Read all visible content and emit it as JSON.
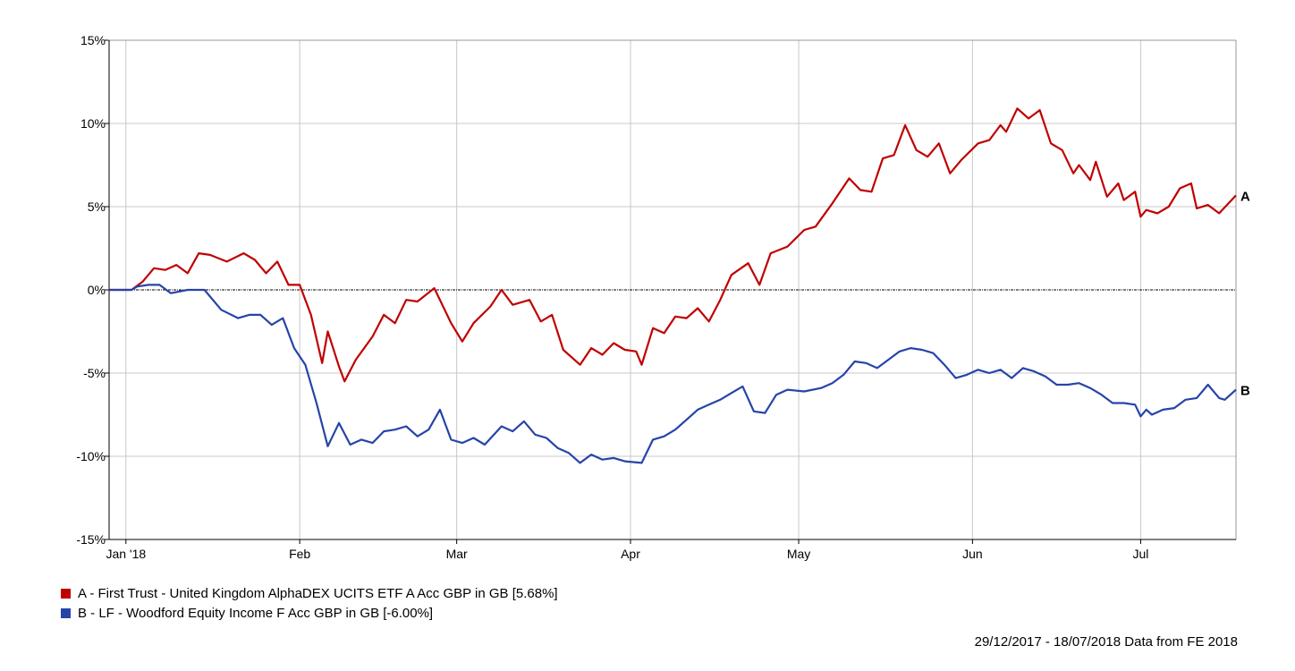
{
  "chart_data": {
    "type": "line",
    "x_range": [
      "2017-12-29",
      "2018-07-18"
    ],
    "ylim": [
      -15,
      15
    ],
    "y_ticks": [
      {
        "value": 15,
        "label": "15%"
      },
      {
        "value": 10,
        "label": "10%"
      },
      {
        "value": 5,
        "label": "5%"
      },
      {
        "value": 0,
        "label": "0%"
      },
      {
        "value": -5,
        "label": "-5%"
      },
      {
        "value": -10,
        "label": "-10%"
      },
      {
        "value": -15,
        "label": "-15%"
      }
    ],
    "x_ticks": [
      {
        "date": "2018-01-01",
        "label": "Jan '18"
      },
      {
        "date": "2018-02-01",
        "label": "Feb"
      },
      {
        "date": "2018-03-01",
        "label": "Mar"
      },
      {
        "date": "2018-04-01",
        "label": "Apr"
      },
      {
        "date": "2018-05-01",
        "label": "May"
      },
      {
        "date": "2018-06-01",
        "label": "Jun"
      },
      {
        "date": "2018-07-01",
        "label": "Jul"
      }
    ],
    "grid": true,
    "zero_line": true,
    "series": [
      {
        "key": "A",
        "name": "A - First Trust - United Kingdom AlphaDEX UCITS ETF A Acc GBP in GB [5.68%]",
        "end_label": "A",
        "color": "#c00000",
        "points": [
          [
            "2017-12-29",
            0.0
          ],
          [
            "2018-01-02",
            0.0
          ],
          [
            "2018-01-04",
            0.5
          ],
          [
            "2018-01-06",
            1.3
          ],
          [
            "2018-01-08",
            1.2
          ],
          [
            "2018-01-10",
            1.5
          ],
          [
            "2018-01-12",
            1.0
          ],
          [
            "2018-01-14",
            2.2
          ],
          [
            "2018-01-16",
            2.1
          ],
          [
            "2018-01-19",
            1.7
          ],
          [
            "2018-01-22",
            2.2
          ],
          [
            "2018-01-24",
            1.8
          ],
          [
            "2018-01-26",
            1.0
          ],
          [
            "2018-01-28",
            1.7
          ],
          [
            "2018-01-30",
            0.3
          ],
          [
            "2018-02-01",
            0.3
          ],
          [
            "2018-02-03",
            -1.5
          ],
          [
            "2018-02-05",
            -4.4
          ],
          [
            "2018-02-06",
            -2.5
          ],
          [
            "2018-02-08",
            -4.6
          ],
          [
            "2018-02-09",
            -5.5
          ],
          [
            "2018-02-11",
            -4.2
          ],
          [
            "2018-02-14",
            -2.8
          ],
          [
            "2018-02-16",
            -1.5
          ],
          [
            "2018-02-18",
            -2.0
          ],
          [
            "2018-02-20",
            -0.6
          ],
          [
            "2018-02-22",
            -0.7
          ],
          [
            "2018-02-25",
            0.1
          ],
          [
            "2018-02-28",
            -2.0
          ],
          [
            "2018-03-02",
            -3.1
          ],
          [
            "2018-03-04",
            -2.0
          ],
          [
            "2018-03-07",
            -1.0
          ],
          [
            "2018-03-09",
            0.0
          ],
          [
            "2018-03-11",
            -0.9
          ],
          [
            "2018-03-14",
            -0.6
          ],
          [
            "2018-03-16",
            -1.9
          ],
          [
            "2018-03-18",
            -1.5
          ],
          [
            "2018-03-20",
            -3.6
          ],
          [
            "2018-03-23",
            -4.5
          ],
          [
            "2018-03-25",
            -3.5
          ],
          [
            "2018-03-27",
            -3.9
          ],
          [
            "2018-03-29",
            -3.2
          ],
          [
            "2018-03-31",
            -3.6
          ],
          [
            "2018-04-02",
            -3.7
          ],
          [
            "2018-04-03",
            -4.5
          ],
          [
            "2018-04-05",
            -2.3
          ],
          [
            "2018-04-07",
            -2.6
          ],
          [
            "2018-04-09",
            -1.6
          ],
          [
            "2018-04-11",
            -1.7
          ],
          [
            "2018-04-13",
            -1.1
          ],
          [
            "2018-04-15",
            -1.9
          ],
          [
            "2018-04-17",
            -0.6
          ],
          [
            "2018-04-19",
            0.9
          ],
          [
            "2018-04-22",
            1.6
          ],
          [
            "2018-04-24",
            0.3
          ],
          [
            "2018-04-26",
            2.2
          ],
          [
            "2018-04-29",
            2.6
          ],
          [
            "2018-05-02",
            3.6
          ],
          [
            "2018-05-04",
            3.8
          ],
          [
            "2018-05-07",
            5.2
          ],
          [
            "2018-05-10",
            6.7
          ],
          [
            "2018-05-12",
            6.0
          ],
          [
            "2018-05-14",
            5.9
          ],
          [
            "2018-05-16",
            7.9
          ],
          [
            "2018-05-18",
            8.1
          ],
          [
            "2018-05-20",
            9.9
          ],
          [
            "2018-05-22",
            8.4
          ],
          [
            "2018-05-24",
            8.0
          ],
          [
            "2018-05-26",
            8.8
          ],
          [
            "2018-05-28",
            7.0
          ],
          [
            "2018-05-30",
            7.8
          ],
          [
            "2018-06-02",
            8.8
          ],
          [
            "2018-06-04",
            9.0
          ],
          [
            "2018-06-06",
            9.9
          ],
          [
            "2018-06-07",
            9.5
          ],
          [
            "2018-06-09",
            10.9
          ],
          [
            "2018-06-11",
            10.3
          ],
          [
            "2018-06-13",
            10.8
          ],
          [
            "2018-06-15",
            8.8
          ],
          [
            "2018-06-17",
            8.4
          ],
          [
            "2018-06-19",
            7.0
          ],
          [
            "2018-06-20",
            7.5
          ],
          [
            "2018-06-22",
            6.6
          ],
          [
            "2018-06-23",
            7.7
          ],
          [
            "2018-06-25",
            5.6
          ],
          [
            "2018-06-27",
            6.4
          ],
          [
            "2018-06-28",
            5.4
          ],
          [
            "2018-06-30",
            5.9
          ],
          [
            "2018-07-01",
            4.4
          ],
          [
            "2018-07-02",
            4.8
          ],
          [
            "2018-07-04",
            4.6
          ],
          [
            "2018-07-06",
            5.0
          ],
          [
            "2018-07-08",
            6.1
          ],
          [
            "2018-07-10",
            6.4
          ],
          [
            "2018-07-11",
            4.9
          ],
          [
            "2018-07-13",
            5.1
          ],
          [
            "2018-07-15",
            4.6
          ],
          [
            "2018-07-18",
            5.68
          ]
        ]
      },
      {
        "key": "B",
        "name": "B - LF - Woodford Equity Income F Acc GBP in GB [-6.00%]",
        "end_label": "B",
        "color": "#2644a8",
        "points": [
          [
            "2017-12-29",
            0.0
          ],
          [
            "2018-01-02",
            0.0
          ],
          [
            "2018-01-03",
            0.2
          ],
          [
            "2018-01-05",
            0.3
          ],
          [
            "2018-01-07",
            0.3
          ],
          [
            "2018-01-09",
            -0.2
          ],
          [
            "2018-01-12",
            0.0
          ],
          [
            "2018-01-15",
            0.0
          ],
          [
            "2018-01-18",
            -1.2
          ],
          [
            "2018-01-21",
            -1.7
          ],
          [
            "2018-01-23",
            -1.5
          ],
          [
            "2018-01-25",
            -1.5
          ],
          [
            "2018-01-27",
            -2.1
          ],
          [
            "2018-01-29",
            -1.7
          ],
          [
            "2018-01-31",
            -3.5
          ],
          [
            "2018-02-02",
            -4.5
          ],
          [
            "2018-02-04",
            -6.8
          ],
          [
            "2018-02-06",
            -9.4
          ],
          [
            "2018-02-08",
            -8.0
          ],
          [
            "2018-02-10",
            -9.3
          ],
          [
            "2018-02-12",
            -9.0
          ],
          [
            "2018-02-14",
            -9.2
          ],
          [
            "2018-02-16",
            -8.5
          ],
          [
            "2018-02-18",
            -8.4
          ],
          [
            "2018-02-20",
            -8.2
          ],
          [
            "2018-02-22",
            -8.8
          ],
          [
            "2018-02-24",
            -8.4
          ],
          [
            "2018-02-26",
            -7.2
          ],
          [
            "2018-02-28",
            -9.0
          ],
          [
            "2018-03-02",
            -9.2
          ],
          [
            "2018-03-04",
            -8.9
          ],
          [
            "2018-03-06",
            -9.3
          ],
          [
            "2018-03-09",
            -8.2
          ],
          [
            "2018-03-11",
            -8.5
          ],
          [
            "2018-03-13",
            -7.9
          ],
          [
            "2018-03-15",
            -8.7
          ],
          [
            "2018-03-17",
            -8.9
          ],
          [
            "2018-03-19",
            -9.5
          ],
          [
            "2018-03-21",
            -9.8
          ],
          [
            "2018-03-23",
            -10.4
          ],
          [
            "2018-03-25",
            -9.9
          ],
          [
            "2018-03-27",
            -10.2
          ],
          [
            "2018-03-29",
            -10.1
          ],
          [
            "2018-03-31",
            -10.3
          ],
          [
            "2018-04-03",
            -10.4
          ],
          [
            "2018-04-05",
            -9.0
          ],
          [
            "2018-04-07",
            -8.8
          ],
          [
            "2018-04-09",
            -8.4
          ],
          [
            "2018-04-11",
            -7.8
          ],
          [
            "2018-04-13",
            -7.2
          ],
          [
            "2018-04-15",
            -6.9
          ],
          [
            "2018-04-17",
            -6.6
          ],
          [
            "2018-04-19",
            -6.2
          ],
          [
            "2018-04-21",
            -5.8
          ],
          [
            "2018-04-23",
            -7.3
          ],
          [
            "2018-04-25",
            -7.4
          ],
          [
            "2018-04-27",
            -6.3
          ],
          [
            "2018-04-29",
            -6.0
          ],
          [
            "2018-05-02",
            -6.1
          ],
          [
            "2018-05-05",
            -5.9
          ],
          [
            "2018-05-07",
            -5.6
          ],
          [
            "2018-05-09",
            -5.1
          ],
          [
            "2018-05-11",
            -4.3
          ],
          [
            "2018-05-13",
            -4.4
          ],
          [
            "2018-05-15",
            -4.7
          ],
          [
            "2018-05-17",
            -4.2
          ],
          [
            "2018-05-19",
            -3.7
          ],
          [
            "2018-05-21",
            -3.5
          ],
          [
            "2018-05-23",
            -3.6
          ],
          [
            "2018-05-25",
            -3.8
          ],
          [
            "2018-05-27",
            -4.5
          ],
          [
            "2018-05-29",
            -5.3
          ],
          [
            "2018-05-31",
            -5.1
          ],
          [
            "2018-06-02",
            -4.8
          ],
          [
            "2018-06-04",
            -5.0
          ],
          [
            "2018-06-06",
            -4.8
          ],
          [
            "2018-06-08",
            -5.3
          ],
          [
            "2018-06-10",
            -4.7
          ],
          [
            "2018-06-12",
            -4.9
          ],
          [
            "2018-06-14",
            -5.2
          ],
          [
            "2018-06-16",
            -5.7
          ],
          [
            "2018-06-18",
            -5.7
          ],
          [
            "2018-06-20",
            -5.6
          ],
          [
            "2018-06-22",
            -5.9
          ],
          [
            "2018-06-24",
            -6.3
          ],
          [
            "2018-06-26",
            -6.8
          ],
          [
            "2018-06-28",
            -6.8
          ],
          [
            "2018-06-30",
            -6.9
          ],
          [
            "2018-07-01",
            -7.6
          ],
          [
            "2018-07-02",
            -7.2
          ],
          [
            "2018-07-03",
            -7.5
          ],
          [
            "2018-07-05",
            -7.2
          ],
          [
            "2018-07-07",
            -7.1
          ],
          [
            "2018-07-09",
            -6.6
          ],
          [
            "2018-07-11",
            -6.5
          ],
          [
            "2018-07-13",
            -5.7
          ],
          [
            "2018-07-15",
            -6.5
          ],
          [
            "2018-07-16",
            -6.6
          ],
          [
            "2018-07-18",
            -6.0
          ]
        ]
      }
    ]
  },
  "footer": {
    "text": "29/12/2017 - 18/07/2018 Data from FE 2018"
  }
}
